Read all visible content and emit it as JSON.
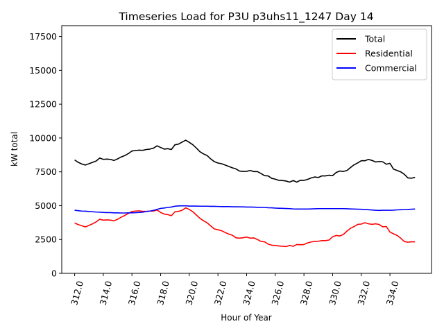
{
  "chart_data": {
    "type": "line",
    "title": "Timeseries Load for P3U p3uhs11_1247  Day 14",
    "xlabel": "Hour of Year",
    "ylabel": "kW total",
    "xlim": [
      311.1,
      336.9
    ],
    "ylim": [
      0,
      18300
    ],
    "xticks": [
      312,
      314,
      316,
      318,
      320,
      322,
      324,
      326,
      328,
      330,
      332,
      334
    ],
    "xtick_labels": [
      "312.0",
      "314.0",
      "316.0",
      "318.0",
      "320.0",
      "322.0",
      "324.0",
      "326.0",
      "328.0",
      "330.0",
      "332.0",
      "334.0"
    ],
    "yticks": [
      0,
      2500,
      5000,
      7500,
      10000,
      12500,
      15000,
      17500
    ],
    "ytick_labels": [
      "0",
      "2500",
      "5000",
      "7500",
      "10000",
      "12500",
      "15000",
      "17500"
    ],
    "grid": false,
    "legend_position": "upper-right",
    "x": [
      312.0,
      312.25,
      312.5,
      312.75,
      313.0,
      313.25,
      313.5,
      313.75,
      314.0,
      314.25,
      314.5,
      314.75,
      315.0,
      315.25,
      315.5,
      315.75,
      316.0,
      316.25,
      316.5,
      316.75,
      317.0,
      317.25,
      317.5,
      317.75,
      318.0,
      318.25,
      318.5,
      318.75,
      319.0,
      319.25,
      319.5,
      319.75,
      320.0,
      320.25,
      320.5,
      320.75,
      321.0,
      321.25,
      321.5,
      321.75,
      322.0,
      322.25,
      322.5,
      322.75,
      323.0,
      323.25,
      323.5,
      323.75,
      324.0,
      324.25,
      324.5,
      324.75,
      325.0,
      325.25,
      325.5,
      325.75,
      326.0,
      326.25,
      326.5,
      326.75,
      327.0,
      327.25,
      327.5,
      327.75,
      328.0,
      328.25,
      328.5,
      328.75,
      329.0,
      329.25,
      329.5,
      329.75,
      330.0,
      330.25,
      330.5,
      330.75,
      331.0,
      331.25,
      331.5,
      331.75,
      332.0,
      332.25,
      332.5,
      332.75,
      333.0,
      333.25,
      333.5,
      333.75,
      334.0,
      334.25,
      334.5,
      334.75,
      335.0,
      335.25,
      335.5,
      335.75
    ],
    "series": [
      {
        "name": "Total",
        "color": "#000000",
        "values": [
          8380,
          8200,
          8080,
          8000,
          8100,
          8200,
          8300,
          8520,
          8420,
          8440,
          8420,
          8340,
          8460,
          8600,
          8700,
          8850,
          9040,
          9080,
          9100,
          9090,
          9150,
          9180,
          9250,
          9420,
          9300,
          9180,
          9210,
          9150,
          9500,
          9550,
          9700,
          9840,
          9680,
          9500,
          9250,
          8980,
          8820,
          8700,
          8450,
          8250,
          8150,
          8100,
          8000,
          7900,
          7800,
          7720,
          7560,
          7530,
          7540,
          7600,
          7520,
          7520,
          7380,
          7220,
          7200,
          7020,
          6960,
          6870,
          6860,
          6820,
          6740,
          6860,
          6740,
          6880,
          6870,
          6940,
          7050,
          7120,
          7080,
          7200,
          7200,
          7250,
          7220,
          7450,
          7560,
          7530,
          7600,
          7820,
          8020,
          8160,
          8320,
          8320,
          8420,
          8340,
          8230,
          8260,
          8240,
          8060,
          8130,
          7700,
          7600,
          7500,
          7320,
          7050,
          7030,
          7090
        ]
      },
      {
        "name": "Residential",
        "color": "#ff0000",
        "values": [
          3720,
          3600,
          3520,
          3430,
          3540,
          3660,
          3800,
          4000,
          3930,
          3950,
          3930,
          3880,
          4000,
          4150,
          4280,
          4430,
          4570,
          4600,
          4620,
          4580,
          4580,
          4600,
          4600,
          4680,
          4500,
          4380,
          4340,
          4260,
          4550,
          4580,
          4660,
          4840,
          4720,
          4550,
          4300,
          4060,
          3880,
          3730,
          3500,
          3280,
          3220,
          3150,
          3020,
          2900,
          2820,
          2630,
          2600,
          2630,
          2680,
          2600,
          2620,
          2500,
          2360,
          2330,
          2160,
          2080,
          2060,
          2020,
          2000,
          1980,
          2060,
          2000,
          2130,
          2110,
          2130,
          2250,
          2320,
          2360,
          2370,
          2420,
          2420,
          2460,
          2700,
          2800,
          2760,
          2870,
          3120,
          3330,
          3460,
          3620,
          3640,
          3740,
          3660,
          3620,
          3660,
          3610,
          3440,
          3460,
          3050,
          2920,
          2800,
          2600,
          2350,
          2300,
          2330,
          2330
        ]
      },
      {
        "name": "Commercial",
        "color": "#0000ff",
        "values": [
          4660,
          4630,
          4600,
          4590,
          4570,
          4550,
          4530,
          4520,
          4500,
          4490,
          4490,
          4470,
          4470,
          4460,
          4460,
          4470,
          4470,
          4480,
          4500,
          4520,
          4570,
          4600,
          4650,
          4730,
          4800,
          4830,
          4870,
          4900,
          4960,
          4980,
          4990,
          4990,
          4970,
          4970,
          4970,
          4960,
          4960,
          4960,
          4950,
          4950,
          4940,
          4930,
          4930,
          4930,
          4920,
          4920,
          4910,
          4910,
          4900,
          4900,
          4890,
          4880,
          4880,
          4870,
          4850,
          4840,
          4820,
          4810,
          4800,
          4790,
          4780,
          4760,
          4750,
          4750,
          4750,
          4750,
          4760,
          4770,
          4780,
          4780,
          4780,
          4780,
          4780,
          4780,
          4780,
          4780,
          4770,
          4760,
          4750,
          4740,
          4730,
          4720,
          4700,
          4680,
          4660,
          4650,
          4660,
          4660,
          4660,
          4670,
          4690,
          4700,
          4710,
          4720,
          4740,
          4750
        ]
      }
    ]
  }
}
